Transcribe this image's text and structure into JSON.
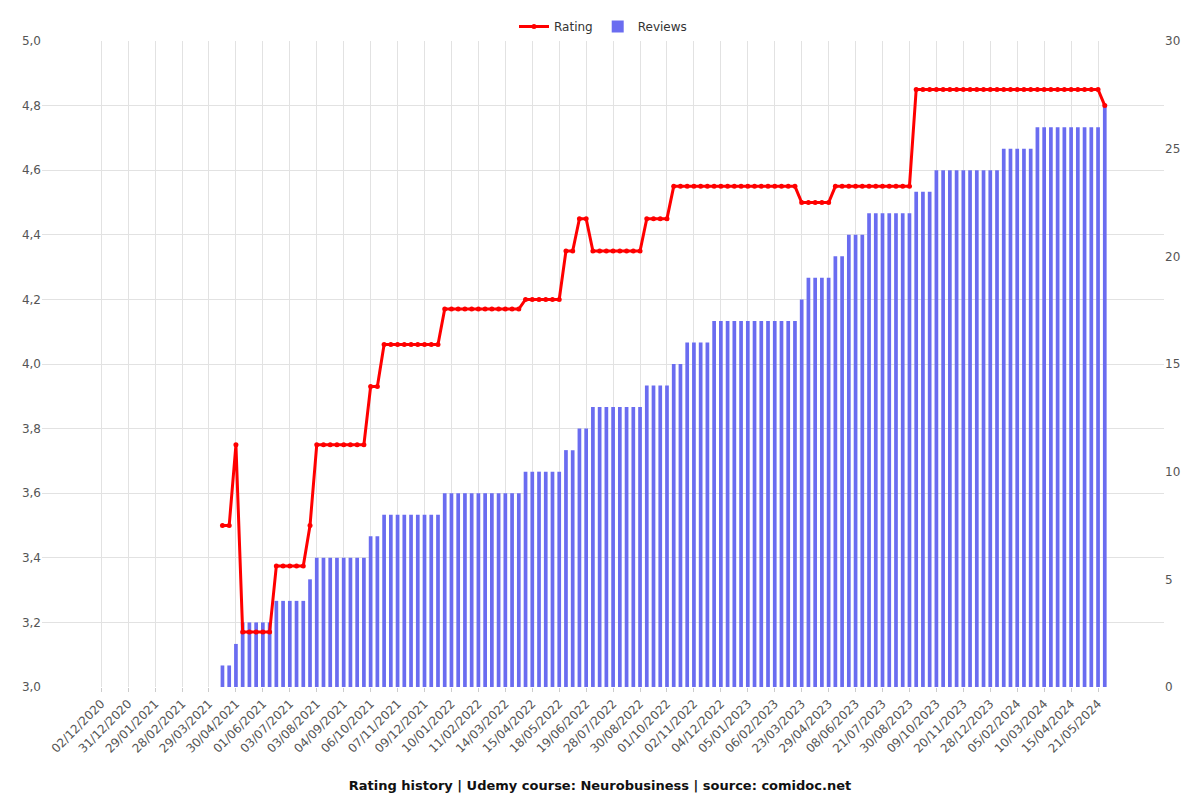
{
  "chart_data": {
    "type": "line",
    "title": "Rating history | Udemy course: Neurobusiness | source: comidoc.net",
    "categories": [
      "02/12/2020",
      null,
      null,
      null,
      "31/12/2020",
      null,
      null,
      null,
      "29/01/2021",
      null,
      null,
      null,
      "28/02/2021",
      null,
      null,
      null,
      "29/03/2021",
      null,
      null,
      null,
      "30/04/2021",
      null,
      null,
      null,
      "01/06/2021",
      null,
      null,
      null,
      "03/07/2021",
      null,
      null,
      null,
      "03/08/2021",
      null,
      null,
      null,
      "04/09/2021",
      null,
      null,
      null,
      "06/10/2021",
      null,
      null,
      null,
      "07/11/2021",
      null,
      null,
      null,
      "09/12/2021",
      null,
      null,
      null,
      "10/01/2022",
      null,
      null,
      null,
      "11/02/2022",
      null,
      null,
      null,
      "14/03/2022",
      null,
      null,
      null,
      "15/04/2022",
      null,
      null,
      null,
      "18/05/2022",
      null,
      null,
      null,
      "19/06/2022",
      null,
      null,
      null,
      "28/07/2022",
      null,
      null,
      null,
      "30/08/2022",
      null,
      null,
      null,
      "01/10/2022",
      null,
      null,
      null,
      "02/11/2022",
      null,
      null,
      null,
      "04/12/2022",
      null,
      null,
      null,
      "05/01/2023",
      null,
      null,
      null,
      "06/02/2023",
      null,
      null,
      null,
      "23/03/2023",
      null,
      null,
      null,
      "29/04/2023",
      null,
      null,
      null,
      "08/06/2023",
      null,
      null,
      null,
      "21/07/2023",
      null,
      null,
      null,
      "30/08/2023",
      null,
      null,
      null,
      "09/10/2023",
      null,
      null,
      null,
      "20/11/2023",
      null,
      null,
      null,
      "28/12/2023",
      null,
      null,
      null,
      "05/02/2024",
      null,
      null,
      null,
      "10/03/2024",
      null,
      null,
      null,
      "15/04/2024",
      null,
      null,
      null,
      "21/05/2024",
      null
    ],
    "series": [
      {
        "name": "Rating",
        "type": "line",
        "color": "#ff0000",
        "marker": "circle",
        "values": [
          null,
          null,
          null,
          null,
          null,
          null,
          null,
          null,
          null,
          null,
          null,
          null,
          null,
          null,
          null,
          null,
          null,
          null,
          3.5,
          3.5,
          3.75,
          3.17,
          3.17,
          3.17,
          3.17,
          3.17,
          3.375,
          3.375,
          3.375,
          3.375,
          3.375,
          3.5,
          3.75,
          3.75,
          3.75,
          3.75,
          3.75,
          3.75,
          3.75,
          3.75,
          3.93,
          3.93,
          4.06,
          4.06,
          4.06,
          4.06,
          4.06,
          4.06,
          4.06,
          4.06,
          4.06,
          4.17,
          4.17,
          4.17,
          4.17,
          4.17,
          4.17,
          4.17,
          4.17,
          4.17,
          4.17,
          4.17,
          4.17,
          4.2,
          4.2,
          4.2,
          4.2,
          4.2,
          4.2,
          4.35,
          4.35,
          4.45,
          4.45,
          4.35,
          4.35,
          4.35,
          4.35,
          4.35,
          4.35,
          4.35,
          4.35,
          4.45,
          4.45,
          4.45,
          4.45,
          4.55,
          4.55,
          4.55,
          4.55,
          4.55,
          4.55,
          4.55,
          4.55,
          4.55,
          4.55,
          4.55,
          4.55,
          4.55,
          4.55,
          4.55,
          4.55,
          4.55,
          4.55,
          4.55,
          4.5,
          4.5,
          4.5,
          4.5,
          4.5,
          4.55,
          4.55,
          4.55,
          4.55,
          4.55,
          4.55,
          4.55,
          4.55,
          4.55,
          4.55,
          4.55,
          4.55,
          4.85,
          4.85,
          4.85,
          4.85,
          4.85,
          4.85,
          4.85,
          4.85,
          4.85,
          4.85,
          4.85,
          4.85,
          4.85,
          4.85,
          4.85,
          4.85,
          4.85,
          4.85,
          4.85,
          4.85,
          4.85,
          4.85,
          4.85,
          4.85,
          4.85,
          4.85,
          4.85,
          4.85,
          4.8
        ]
      },
      {
        "name": "Reviews",
        "type": "bar",
        "color": "#6a6cf0",
        "axis": "y2",
        "values": [
          null,
          null,
          null,
          null,
          null,
          null,
          null,
          null,
          null,
          null,
          null,
          null,
          null,
          null,
          null,
          null,
          null,
          null,
          1,
          1,
          2,
          3,
          3,
          3,
          3,
          3,
          4,
          4,
          4,
          4,
          4,
          5,
          6,
          6,
          6,
          6,
          6,
          6,
          6,
          6,
          7,
          7,
          8,
          8,
          8,
          8,
          8,
          8,
          8,
          8,
          8,
          9,
          9,
          9,
          9,
          9,
          9,
          9,
          9,
          9,
          9,
          9,
          9,
          10,
          10,
          10,
          10,
          10,
          10,
          11,
          11,
          12,
          12,
          13,
          13,
          13,
          13,
          13,
          13,
          13,
          13,
          14,
          14,
          14,
          14,
          15,
          15,
          16,
          16,
          16,
          16,
          17,
          17,
          17,
          17,
          17,
          17,
          17,
          17,
          17,
          17,
          17,
          17,
          17,
          18,
          19,
          19,
          19,
          19,
          20,
          20,
          21,
          21,
          21,
          22,
          22,
          22,
          22,
          22,
          22,
          22,
          23,
          23,
          23,
          24,
          24,
          24,
          24,
          24,
          24,
          24,
          24,
          24,
          24,
          25,
          25,
          25,
          25,
          25,
          26,
          26,
          26,
          26,
          26,
          26,
          26,
          26,
          26,
          26,
          27
        ]
      }
    ],
    "ylim": [
      3,
      5
    ],
    "yticks": [
      {
        "value": 3,
        "label": "3,0"
      },
      {
        "value": 3.2,
        "label": "3,2"
      },
      {
        "value": 3.4,
        "label": "3,4"
      },
      {
        "value": 3.6,
        "label": "3,6"
      },
      {
        "value": 3.8,
        "label": "3,8"
      },
      {
        "value": 4,
        "label": "4,0"
      },
      {
        "value": 4.2,
        "label": "4,2"
      },
      {
        "value": 4.4,
        "label": "4,4"
      },
      {
        "value": 4.6,
        "label": "4,6"
      },
      {
        "value": 4.8,
        "label": "4,8"
      },
      {
        "value": 5,
        "label": "5,0"
      }
    ],
    "y2lim": [
      0,
      30
    ],
    "y2ticks": [
      0,
      5,
      10,
      15,
      20,
      25,
      30
    ],
    "grid": true,
    "legend": "top"
  }
}
